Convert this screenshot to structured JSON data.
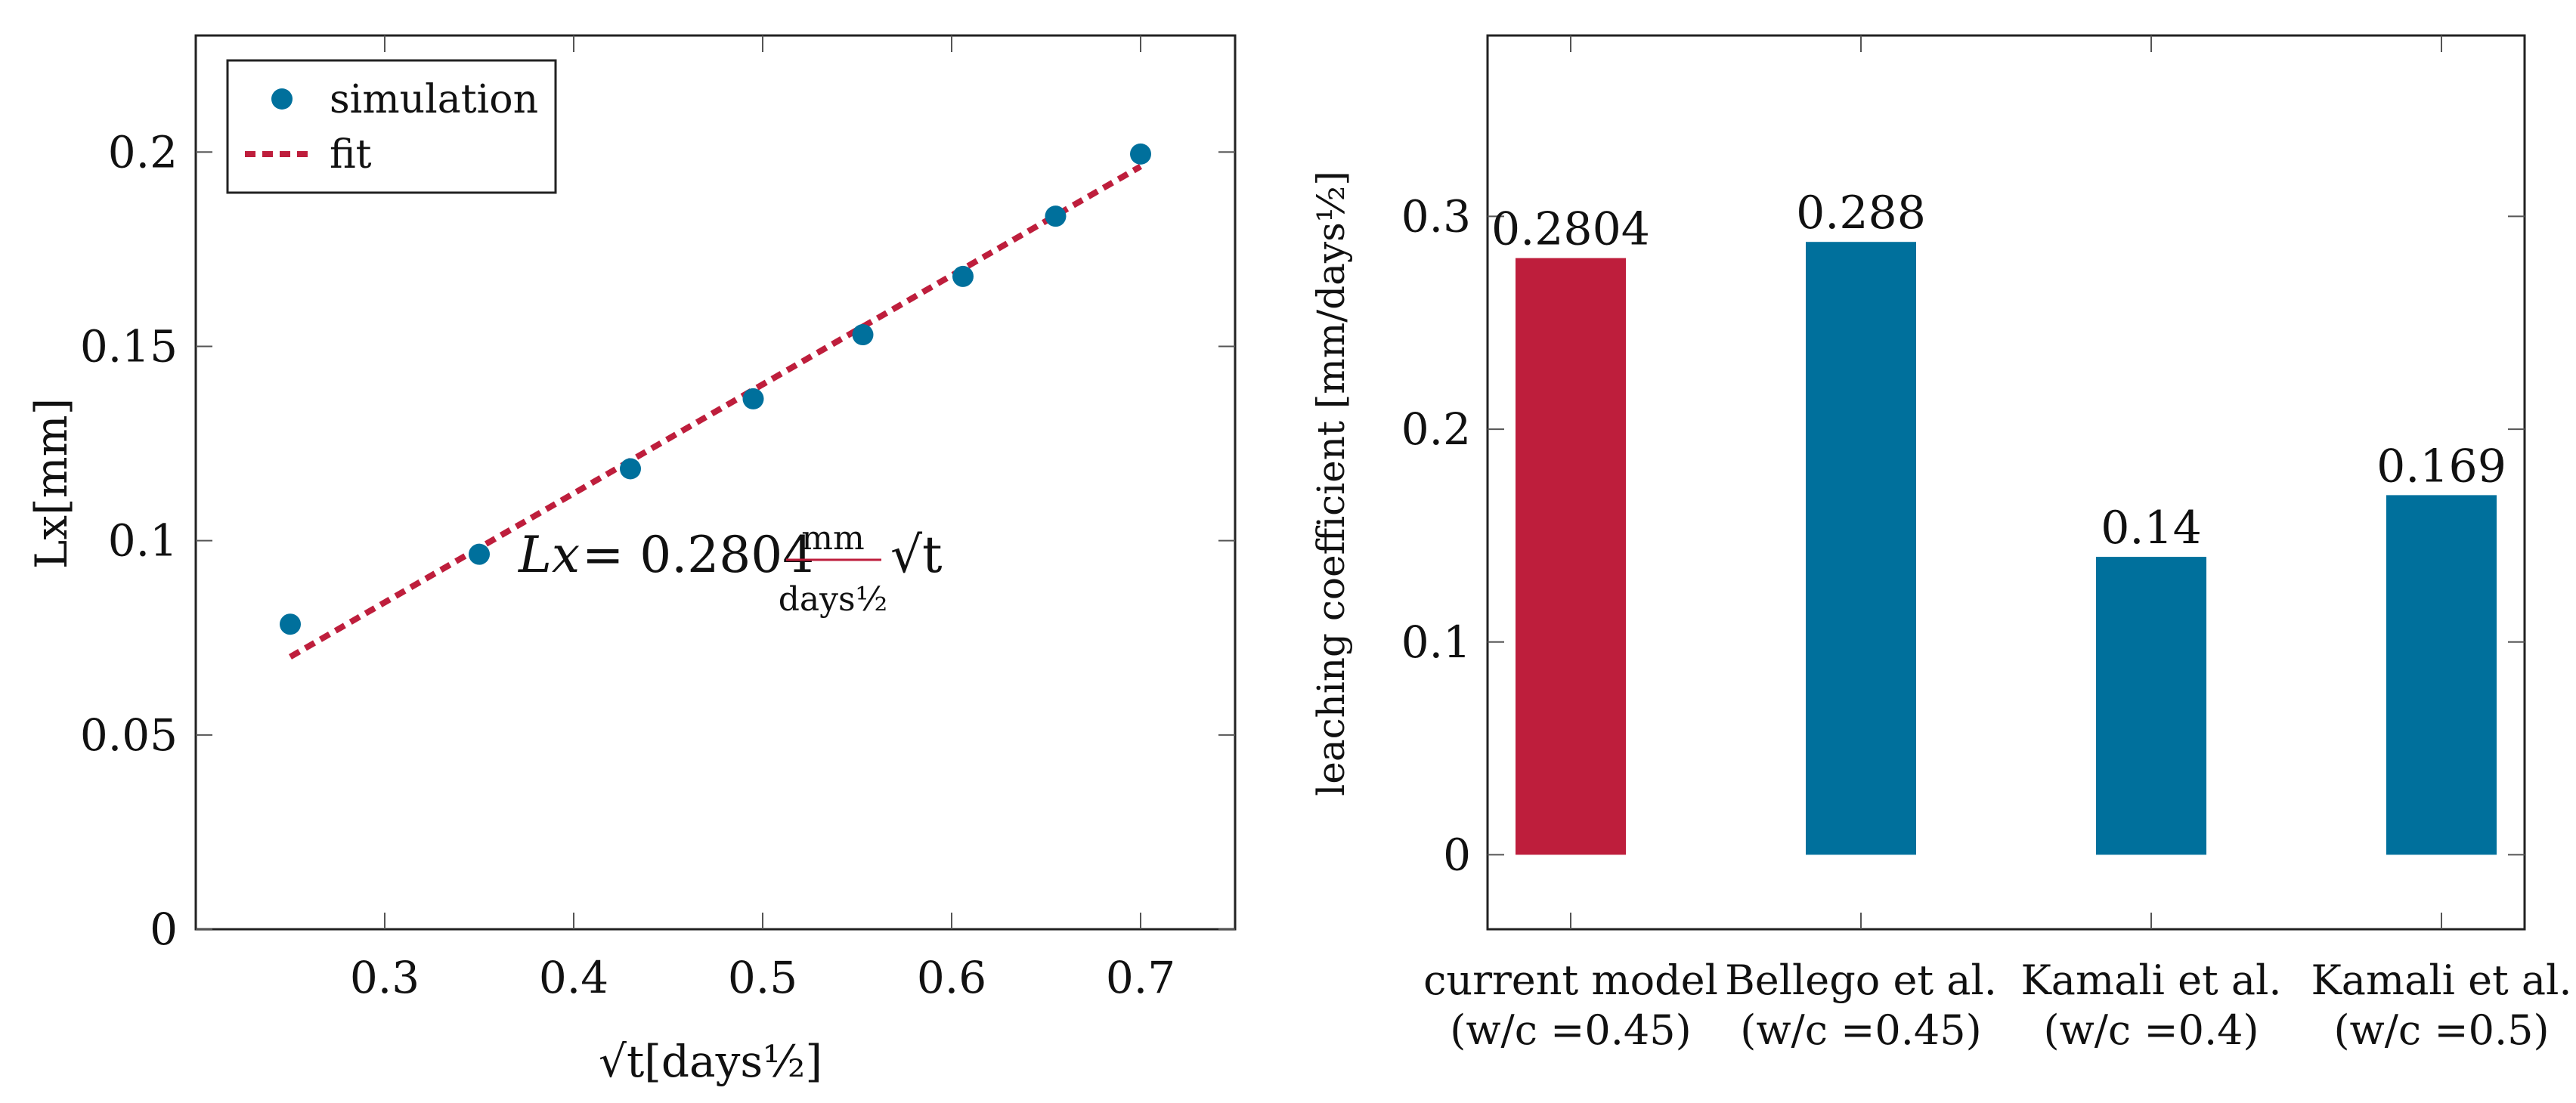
{
  "colors": {
    "simulation": "#00709c",
    "fit": "#be1e3c",
    "bar_current": "#be1e3c",
    "bar_other": "#00709c"
  },
  "chart_data": [
    {
      "type": "scatter",
      "title": "",
      "xlabel": "√t[days½]",
      "ylabel": "Lx[mm]",
      "xlim": [
        0.2,
        0.75
      ],
      "ylim": [
        0,
        0.23
      ],
      "xticks": [
        0.3,
        0.4,
        0.5,
        0.6,
        0.7
      ],
      "xtick_labels": [
        "0.3",
        "0.4",
        "0.5",
        "0.6",
        "0.7"
      ],
      "yticks": [
        0,
        0.05,
        0.1,
        0.15,
        0.2
      ],
      "ytick_labels": [
        "0",
        "0.05",
        "0.1",
        "0.15",
        "0.2"
      ],
      "legend": {
        "position": "top-left",
        "entries": [
          "simulation",
          "fit"
        ]
      },
      "series": [
        {
          "name": "simulation",
          "kind": "markers",
          "x": [
            0.25,
            0.35,
            0.43,
            0.495,
            0.553,
            0.606,
            0.655,
            0.7
          ],
          "y": [
            0.0785,
            0.0965,
            0.1185,
            0.1365,
            0.153,
            0.168,
            0.1835,
            0.1995
          ]
        },
        {
          "name": "fit",
          "kind": "dashed-line",
          "coefficient": 0.2804,
          "x": [
            0.25,
            0.7
          ],
          "y": [
            0.0701,
            0.1963
          ]
        }
      ],
      "annotation": {
        "lhs": "Lx",
        "equals": "= 0.2804",
        "frac_num": "mm",
        "frac_den": "days½",
        "rhs": "√t"
      }
    },
    {
      "type": "bar",
      "title": "",
      "xlabel": "",
      "ylabel": "leaching coefficient [mm/days½]",
      "ylim": [
        -0.035,
        0.385
      ],
      "yticks": [
        0,
        0.1,
        0.2,
        0.3
      ],
      "ytick_labels": [
        "0",
        "0.1",
        "0.2",
        "0.3"
      ],
      "categories": [
        {
          "line1": "current model",
          "line2": "(w/c =0.45)"
        },
        {
          "line1": "Bellego et al.",
          "line2": "(w/c =0.45)"
        },
        {
          "line1": "Kamali et al.",
          "line2": "(w/c =0.4)"
        },
        {
          "line1": "Kamali et al.",
          "line2": "(w/c =0.5)"
        }
      ],
      "values": [
        0.2804,
        0.288,
        0.14,
        0.169
      ],
      "value_labels": [
        "0.2804",
        "0.288",
        "0.14",
        "0.169"
      ]
    }
  ]
}
